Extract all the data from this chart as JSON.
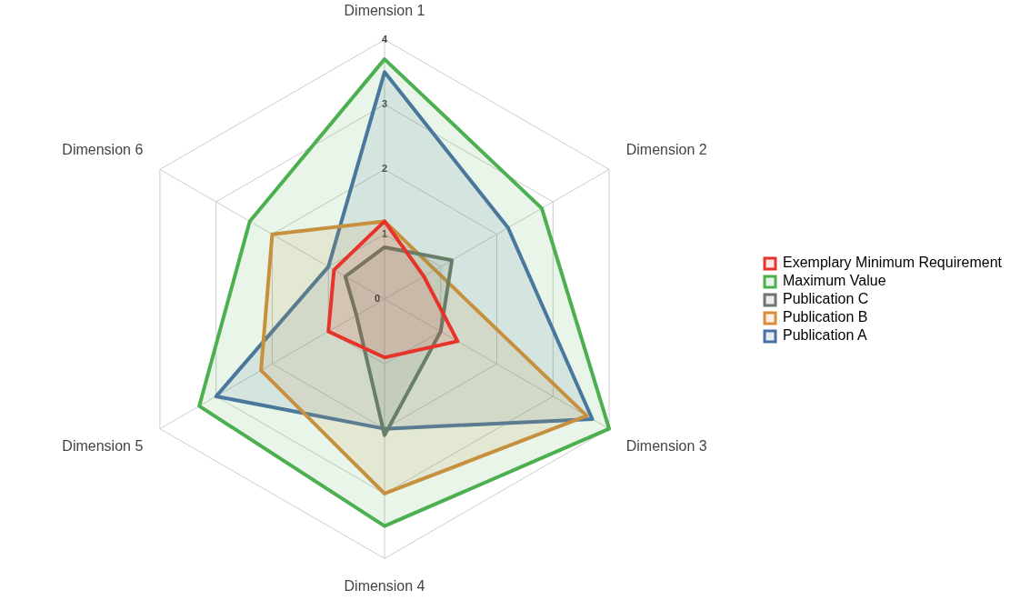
{
  "chart_data": {
    "type": "radar",
    "categories": [
      "Dimension 1",
      "Dimension 2",
      "Dimension 3",
      "Dimension 4",
      "Dimension 5",
      "Dimension 6"
    ],
    "series": [
      {
        "name": "Exemplary Minimum Requirement",
        "color": "#e8332a",
        "values": [
          1.2,
          0.7,
          1.3,
          0.9,
          1.0,
          0.9
        ]
      },
      {
        "name": "Maximum Value",
        "color": "#4caf50",
        "values": [
          3.7,
          2.8,
          4.0,
          3.5,
          3.3,
          2.4
        ]
      },
      {
        "name": "Publication C",
        "color": "#6e776e",
        "values": [
          0.8,
          1.2,
          1.0,
          2.1,
          0.5,
          0.7
        ]
      },
      {
        "name": "Publication B",
        "color": "#d98c3c",
        "values": [
          1.2,
          0.9,
          3.6,
          3.0,
          2.2,
          2.0
        ]
      },
      {
        "name": "Publication A",
        "color": "#4a70a8",
        "values": [
          3.5,
          2.2,
          3.7,
          2.0,
          3.0,
          1.0
        ]
      }
    ],
    "ylim": [
      0,
      4
    ],
    "yticks": [
      0,
      1,
      2,
      3,
      4
    ],
    "grid": true,
    "legend": "right",
    "marker": "none"
  }
}
